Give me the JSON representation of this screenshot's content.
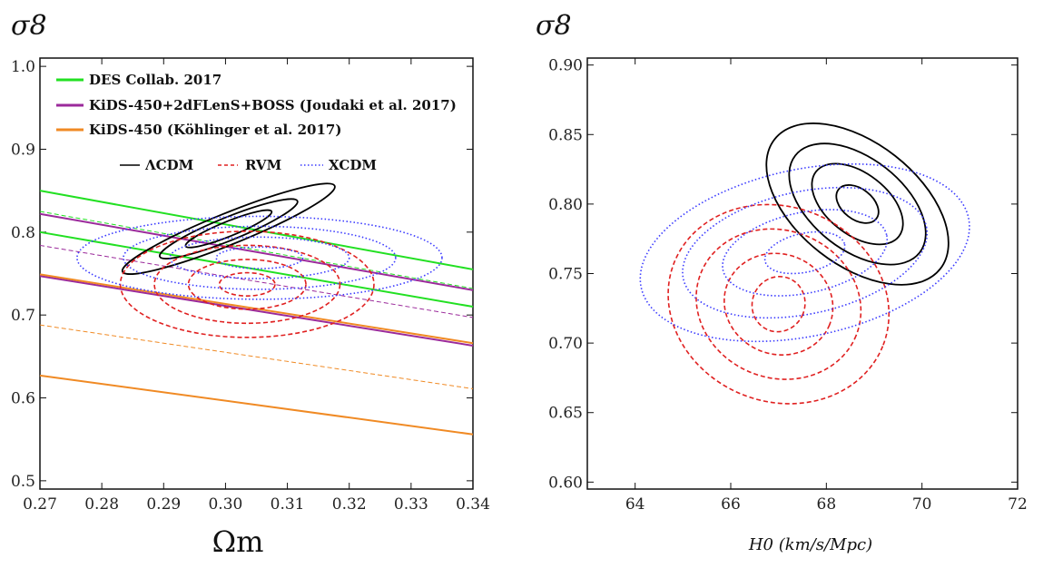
{
  "colors": {
    "des": "#22e022",
    "kids_boss": "#9b2a9b",
    "kids_450": "#f08a24",
    "lcdm": "#000000",
    "rvm": "#e02020",
    "xcdm": "#3a3aff"
  },
  "chart_data": [
    {
      "type": "line",
      "title": "",
      "ylabel": "σ8",
      "xlabel": "Ωm",
      "xlim": [
        0.27,
        0.34
      ],
      "ylim": [
        0.49,
        1.01
      ],
      "xticks": [
        "0.27",
        "0.28",
        "0.29",
        "0.30",
        "0.31",
        "0.32",
        "0.33",
        "0.34"
      ],
      "yticks": [
        "0.5",
        "0.6",
        "0.7",
        "0.8",
        "0.9",
        "1.0"
      ],
      "legend": {
        "position": "top-left",
        "lines": [
          {
            "label": "DES Collab. 2017",
            "color": "#22e022"
          },
          {
            "label": "KiDS-450+2dFLenS+BOSS (Joudaki et al. 2017)",
            "color": "#9b2a9b"
          },
          {
            "label": "KiDS-450 (Köhlinger et al. 2017)",
            "color": "#f08a24"
          }
        ],
        "models": [
          {
            "label": "ΛCDM",
            "color": "#000000",
            "style": "solid"
          },
          {
            "label": "RVM",
            "color": "#e02020",
            "style": "dashed"
          },
          {
            "label": "XCDM",
            "color": "#3a3aff",
            "style": "dotted"
          }
        ]
      },
      "series": [
        {
          "name": "DES upper",
          "color": "#22e022",
          "style": "solid",
          "x": [
            0.27,
            0.34
          ],
          "y": [
            0.85,
            0.755
          ]
        },
        {
          "name": "DES central",
          "color": "#22e022",
          "style": "dashed",
          "x": [
            0.27,
            0.34
          ],
          "y": [
            0.825,
            0.732
          ]
        },
        {
          "name": "DES lower",
          "color": "#22e022",
          "style": "solid",
          "x": [
            0.27,
            0.34
          ],
          "y": [
            0.8,
            0.71
          ]
        },
        {
          "name": "KiDS+BOSS upper",
          "color": "#9b2a9b",
          "style": "solid",
          "x": [
            0.27,
            0.34
          ],
          "y": [
            0.822,
            0.73
          ]
        },
        {
          "name": "KiDS+BOSS central",
          "color": "#9b2a9b",
          "style": "dashed",
          "x": [
            0.27,
            0.34
          ],
          "y": [
            0.784,
            0.697
          ]
        },
        {
          "name": "KiDS+BOSS lower",
          "color": "#9b2a9b",
          "style": "solid",
          "x": [
            0.27,
            0.34
          ],
          "y": [
            0.747,
            0.663
          ]
        },
        {
          "name": "KiDS-450 upper",
          "color": "#f08a24",
          "style": "solid",
          "x": [
            0.27,
            0.34
          ],
          "y": [
            0.749,
            0.666
          ]
        },
        {
          "name": "KiDS-450 central",
          "color": "#f08a24",
          "style": "dashed",
          "x": [
            0.27,
            0.34
          ],
          "y": [
            0.688,
            0.611
          ]
        },
        {
          "name": "KiDS-450 lower",
          "color": "#f08a24",
          "style": "solid",
          "x": [
            0.27,
            0.34
          ],
          "y": [
            0.627,
            0.556
          ]
        }
      ],
      "contours": [
        {
          "model": "ΛCDM",
          "color": "#000000",
          "style": "solid",
          "cx": 0.3005,
          "cy": 0.804,
          "rx": [
            0.0075,
            0.012,
            0.0185
          ],
          "ry": [
            0.009,
            0.014,
            0.019
          ],
          "rotation_deg": -22
        },
        {
          "model": "RVM",
          "color": "#e02020",
          "style": "dashed",
          "cx": 0.3035,
          "cy": 0.737,
          "rx": [
            0.0045,
            0.0095,
            0.015,
            0.0205
          ],
          "ry": [
            0.014,
            0.03,
            0.047,
            0.064
          ],
          "rotation_deg": 0
        },
        {
          "model": "XCDM",
          "color": "#3a3aff",
          "style": "dotted",
          "cx": 0.3055,
          "cy": 0.769,
          "rx": [
            0.007,
            0.0145,
            0.022,
            0.0295
          ],
          "ry": [
            0.013,
            0.025,
            0.038,
            0.05
          ],
          "rotation_deg": 0
        }
      ]
    },
    {
      "type": "line",
      "title": "",
      "ylabel": "σ8",
      "xlabel": "H0 (km/s/Mpc)",
      "xlim": [
        63,
        72
      ],
      "ylim": [
        0.595,
        0.905
      ],
      "xticks": [
        "64",
        "66",
        "68",
        "70",
        "72"
      ],
      "yticks": [
        "0.60",
        "0.65",
        "0.70",
        "0.75",
        "0.80",
        "0.85",
        "0.90"
      ],
      "contours": [
        {
          "model": "ΛCDM",
          "color": "#000000",
          "style": "solid",
          "cx": 68.65,
          "cy": 0.8,
          "rx": [
            0.5,
            1.1,
            1.65,
            2.2
          ],
          "ry": [
            0.011,
            0.022,
            0.033,
            0.044
          ],
          "rotation_deg": 38
        },
        {
          "model": "RVM",
          "color": "#e02020",
          "style": "dashed",
          "cx": 67.0,
          "cy": 0.728,
          "rx": [
            0.55,
            1.15,
            1.75,
            2.35
          ],
          "ry": [
            0.02,
            0.036,
            0.053,
            0.07
          ],
          "rotation_deg": 22
        },
        {
          "model": "XCDM",
          "color": "#3a3aff",
          "style": "dotted",
          "cx": 67.55,
          "cy": 0.765,
          "rx": [
            0.85,
            1.75,
            2.6,
            3.5
          ],
          "ry": [
            0.014,
            0.029,
            0.044,
            0.06
          ],
          "rotation_deg": -12
        }
      ]
    }
  ]
}
